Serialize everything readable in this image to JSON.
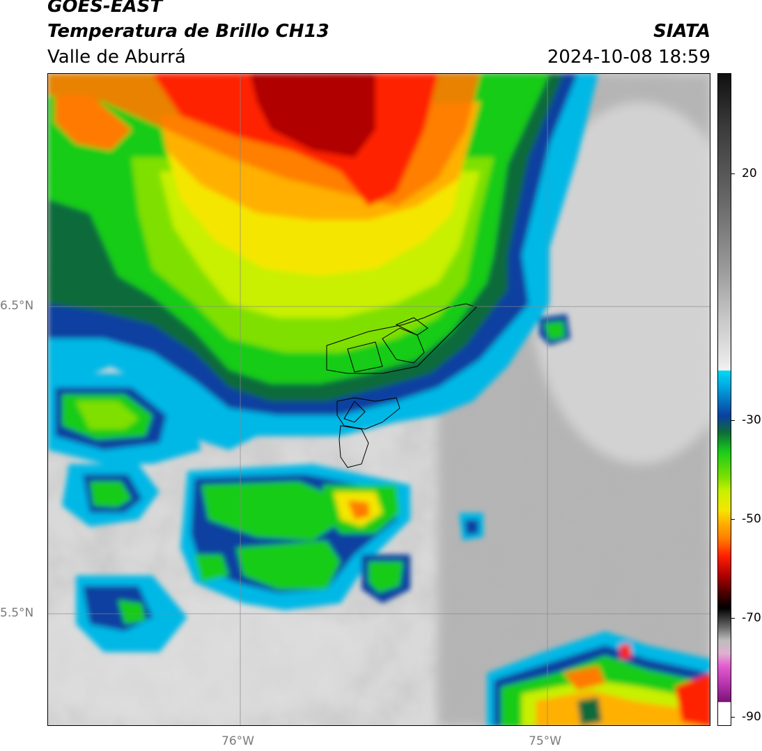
{
  "header": {
    "satellite": "GOES-EAST",
    "product": "Temperatura de Brillo CH13",
    "region": "Valle de Aburrá",
    "org": "SIATA",
    "datetime": "2024-10-08 18:59"
  },
  "map": {
    "lat_labels": [
      "6.5°N",
      "5.5°N"
    ],
    "lon_labels": [
      "76°W",
      "75°W"
    ]
  },
  "colorbar": {
    "ticks": [
      "20",
      "-30",
      "-50",
      "-70",
      "-90"
    ]
  }
}
